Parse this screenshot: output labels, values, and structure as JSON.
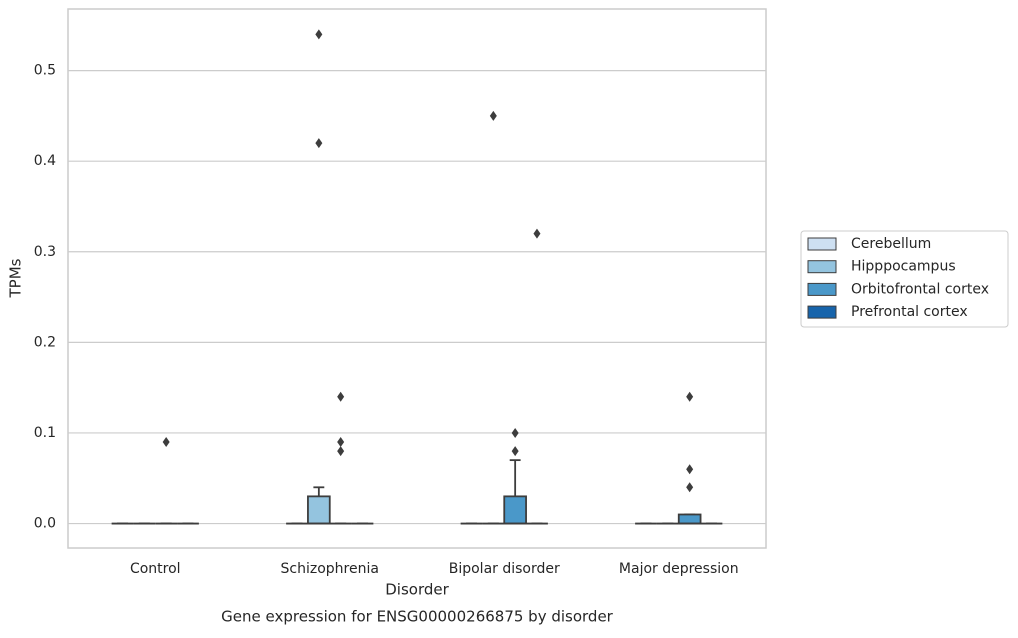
{
  "chart_data": {
    "type": "box",
    "title": "Gene expression for ENSG00000266875 by disorder",
    "xlabel": "Disorder",
    "ylabel": "TPMs",
    "categories": [
      "Control",
      "Schizophrenia",
      "Bipolar disorder",
      "Major depression"
    ],
    "ylim": [
      -0.027,
      0.568
    ],
    "yticks": [
      {
        "value": 0,
        "label": "0.0"
      },
      0.1,
      0.2,
      0.3,
      0.4,
      0.5
    ],
    "grid": true,
    "legend": "right",
    "series": [
      {
        "name": "Cerebellum",
        "color": "#cee0f2",
        "whislo": [
          0,
          0,
          0,
          0
        ],
        "q1": [
          0,
          0,
          0,
          0
        ],
        "median": [
          0,
          0,
          0,
          0
        ],
        "q3": [
          0,
          0,
          0,
          0
        ],
        "whishi": [
          0,
          0,
          0,
          0
        ],
        "fliers": [
          [],
          [],
          [],
          []
        ]
      },
      {
        "name": "Hipppocampus",
        "color": "#94c4df",
        "whislo": [
          0,
          0,
          0,
          0
        ],
        "q1": [
          0,
          0,
          0,
          0
        ],
        "median": [
          0,
          0,
          0,
          0
        ],
        "q3": [
          0,
          0.03,
          0,
          0
        ],
        "whishi": [
          0,
          0.04,
          0,
          0
        ],
        "fliers": [
          [],
          [
            0.54,
            0.42
          ],
          [
            0.45
          ],
          []
        ]
      },
      {
        "name": "Orbitofrontal cortex",
        "color": "#4a98c9",
        "whislo": [
          0,
          0,
          0,
          0
        ],
        "q1": [
          0,
          0,
          0,
          0
        ],
        "median": [
          0,
          0,
          0,
          0
        ],
        "q3": [
          0,
          0,
          0.03,
          0.01
        ],
        "whishi": [
          0,
          0,
          0.07,
          0.01
        ],
        "fliers": [
          [
            0.09
          ],
          [
            0.14,
            0.09,
            0.08
          ],
          [
            0.1,
            0.08
          ],
          [
            0.14,
            0.06,
            0.04
          ]
        ]
      },
      {
        "name": "Prefrontal cortex",
        "color": "#1764ab",
        "whislo": [
          0,
          0,
          0,
          0
        ],
        "q1": [
          0,
          0,
          0,
          0
        ],
        "median": [
          0,
          0,
          0,
          0
        ],
        "q3": [
          0,
          0,
          0,
          0
        ],
        "whishi": [
          0,
          0,
          0,
          0
        ],
        "fliers": [
          [],
          [],
          [
            0.32
          ],
          []
        ]
      }
    ]
  }
}
